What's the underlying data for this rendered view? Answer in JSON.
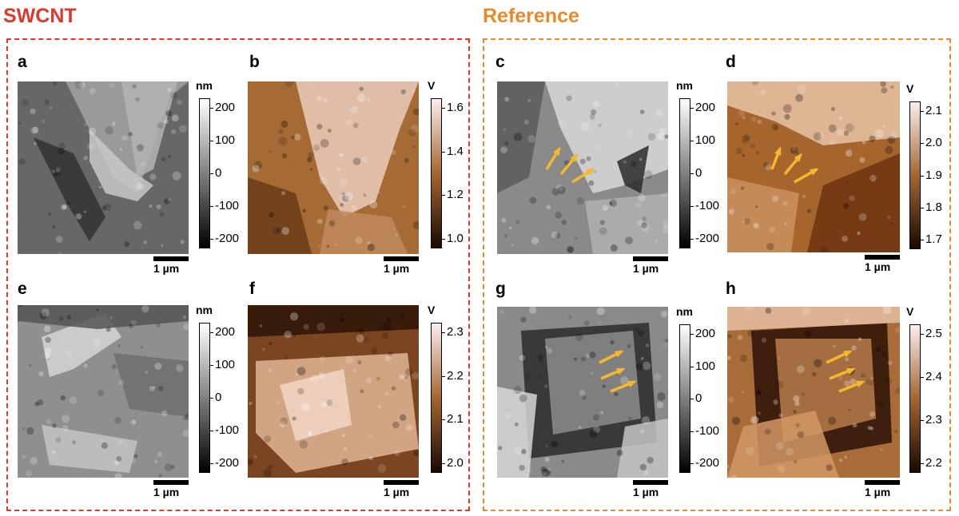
{
  "groups": {
    "left": {
      "title": "SWCNT",
      "color": "#d93a2b"
    },
    "right": {
      "title": "Reference",
      "color": "#e8892b"
    }
  },
  "panels": {
    "a": {
      "label": "a",
      "scale": "1 µm",
      "unit": "nm",
      "ticks": [
        "200",
        "100",
        "0",
        "-100",
        "-200"
      ],
      "map": "gray"
    },
    "b": {
      "label": "b",
      "scale": "1 µm",
      "unit": "V",
      "ticks": [
        "1.6",
        "1.4",
        "1.2",
        "1.0"
      ],
      "map": "copper"
    },
    "c": {
      "label": "c",
      "scale": "1 µm",
      "unit": "nm",
      "ticks": [
        "200",
        "100",
        "0",
        "-100",
        "-200"
      ],
      "map": "gray"
    },
    "d": {
      "label": "d",
      "scale": "1 µm",
      "unit": "V",
      "ticks": [
        "2.1",
        "2.0",
        "1.9",
        "1.8",
        "1.7"
      ],
      "map": "copper"
    },
    "e": {
      "label": "e",
      "scale": "1 µm",
      "unit": "nm",
      "ticks": [
        "200",
        "100",
        "0",
        "-100",
        "-200"
      ],
      "map": "gray"
    },
    "f": {
      "label": "f",
      "scale": "1 µm",
      "unit": "V",
      "ticks": [
        "2.3",
        "2.2",
        "2.1",
        "2.0"
      ],
      "map": "copper"
    },
    "g": {
      "label": "g",
      "scale": "1 µm",
      "unit": "nm",
      "ticks": [
        "200",
        "100",
        "0",
        "-100",
        "-200"
      ],
      "map": "gray"
    },
    "h": {
      "label": "h",
      "scale": "1 µm",
      "unit": "V",
      "ticks": [
        "2.5",
        "2.4",
        "2.3",
        "2.2"
      ],
      "map": "copper"
    }
  },
  "colors": {
    "arrow": "#f5b82e",
    "gray_low": "#000000",
    "gray_high": "#ffffff",
    "copper_low": "#1a0a02",
    "copper_mid": "#a5662e",
    "copper_high": "#fbeef0"
  }
}
